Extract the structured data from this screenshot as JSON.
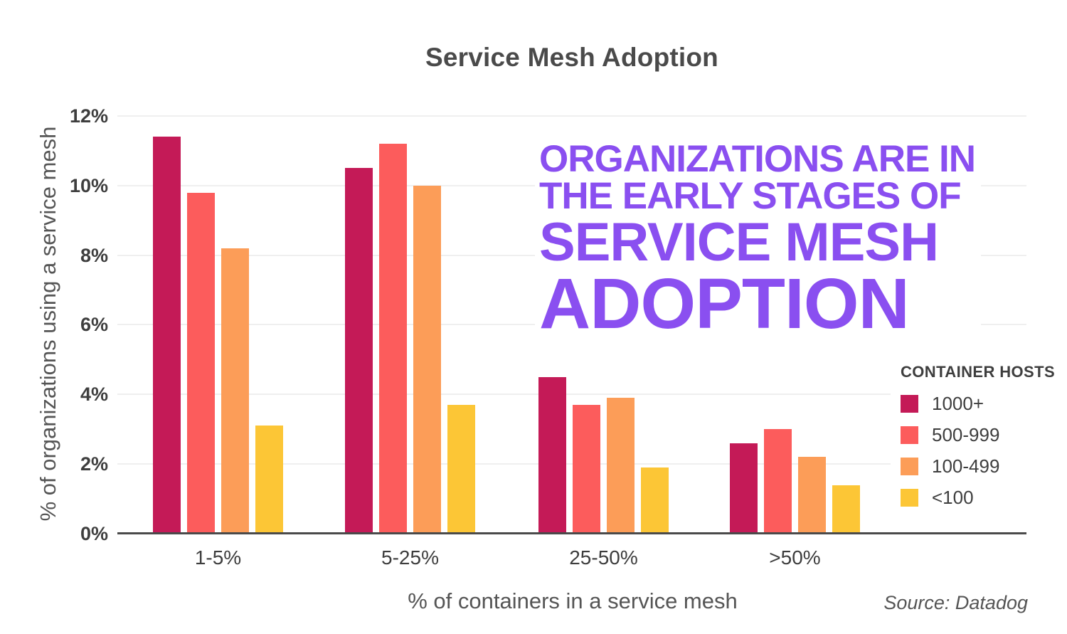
{
  "page": {
    "title": "Service Mesh Adoption",
    "source": "Source: Datadog"
  },
  "headline": {
    "color": "#8A4FF0",
    "lines": [
      "ORGANIZATIONS ARE IN",
      "THE EARLY STAGES OF",
      "SERVICE MESH",
      "ADOPTION"
    ]
  },
  "legend": {
    "title": "CONTAINER HOSTS",
    "items": [
      {
        "label": "1000+",
        "color": "#C41A57"
      },
      {
        "label": "500-999",
        "color": "#FC5C5C"
      },
      {
        "label": "100-499",
        "color": "#FC9D58"
      },
      {
        "label": "<100",
        "color": "#FCC636"
      }
    ]
  },
  "chart_data": {
    "type": "bar",
    "title": "Service Mesh Adoption",
    "xlabel": "% of containers in a service mesh",
    "ylabel": "% of organizations using a service mesh",
    "categories": [
      "1-5%",
      "5-25%",
      "25-50%",
      ">50%"
    ],
    "series": [
      {
        "name": "1000+",
        "color": "#C41A57",
        "values": [
          11.4,
          10.5,
          4.5,
          2.6
        ]
      },
      {
        "name": "500-999",
        "color": "#FC5C5C",
        "values": [
          9.8,
          11.2,
          3.7,
          3.0
        ]
      },
      {
        "name": "100-499",
        "color": "#FC9D58",
        "values": [
          8.2,
          10.0,
          3.9,
          2.2
        ]
      },
      {
        "name": "<100",
        "color": "#FCC636",
        "values": [
          3.1,
          3.7,
          1.9,
          1.4
        ]
      }
    ],
    "ylim": [
      0,
      12
    ],
    "ytick_step": 2,
    "ytick_labels": [
      "0%",
      "2%",
      "4%",
      "6%",
      "8%",
      "10%",
      "12%"
    ],
    "grid": true,
    "legend_position": "right",
    "colors": {
      "axis": "#4a4a4a",
      "gridline": "#efefef",
      "tick_text": "#3e3e3e",
      "secondary_text": "#555555"
    }
  }
}
